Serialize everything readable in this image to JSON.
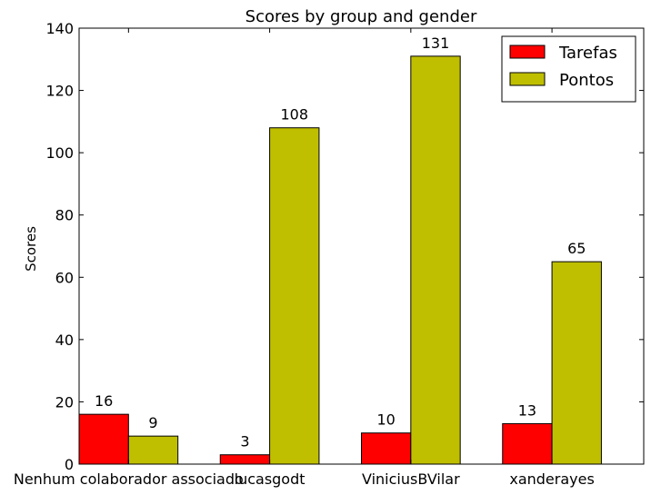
{
  "chart_data": {
    "type": "bar",
    "title": "Scores by group and gender",
    "xlabel": "",
    "ylabel": "Scores",
    "categories": [
      "Nenhum colaborador associado",
      "lucasgodt",
      "ViniciusBVilar",
      "xanderayes"
    ],
    "series": [
      {
        "name": "Tarefas",
        "values": [
          16,
          3,
          10,
          13
        ],
        "color": "#ff0000"
      },
      {
        "name": "Pontos",
        "values": [
          9,
          108,
          131,
          65
        ],
        "color": "#bfbf00"
      }
    ],
    "ylim": [
      0,
      140
    ],
    "yticks": [
      0,
      20,
      40,
      60,
      80,
      100,
      120,
      140
    ],
    "grid": false,
    "legend_position": "top-right"
  }
}
